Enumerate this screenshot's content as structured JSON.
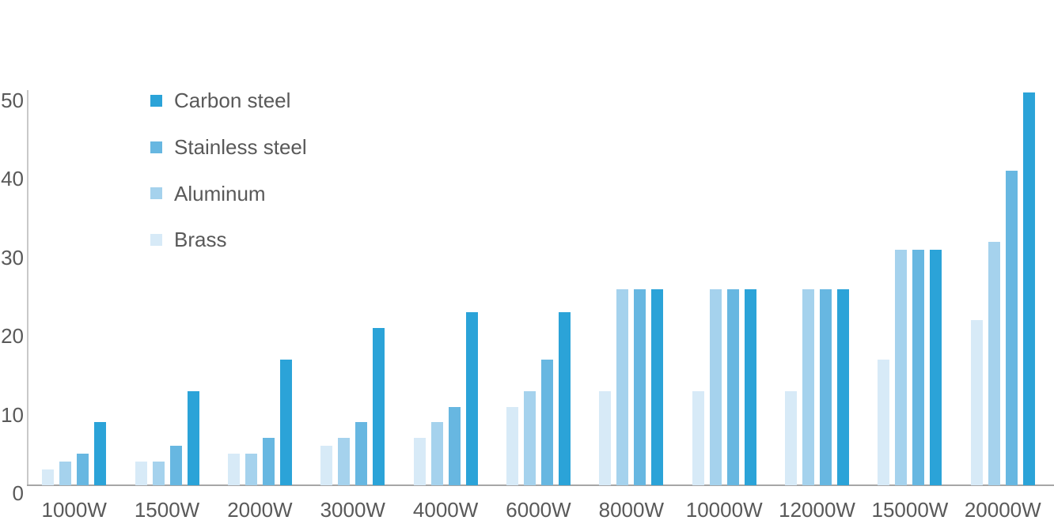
{
  "chart_data": {
    "type": "bar",
    "title": "",
    "xlabel": "",
    "ylabel": "",
    "categories": [
      "1000W",
      "1500W",
      "2000W",
      "3000W",
      "4000W",
      "6000W",
      "8000W",
      "10000W",
      "12000W",
      "15000W",
      "20000W"
    ],
    "series": [
      {
        "name": "Carbon steel",
        "color": "#2BA3D8",
        "values": [
          8,
          12,
          16,
          20,
          22,
          22,
          25,
          25,
          25,
          30,
          50
        ]
      },
      {
        "name": "Stainless steel",
        "color": "#67B7E1",
        "values": [
          4,
          5,
          6,
          8,
          10,
          16,
          25,
          25,
          25,
          30,
          40
        ]
      },
      {
        "name": "Aluminum",
        "color": "#A5D2ED",
        "values": [
          3,
          3,
          4,
          6,
          8,
          12,
          25,
          25,
          25,
          30,
          31
        ]
      },
      {
        "name": "Brass",
        "color": "#D7EAF7",
        "values": [
          2,
          3,
          4,
          5,
          6,
          10,
          12,
          12,
          12,
          16,
          21
        ]
      }
    ],
    "bar_draw_order_left_to_right": [
      "Brass",
      "Aluminum",
      "Stainless steel",
      "Carbon steel"
    ],
    "y_ticks": [
      0,
      10,
      20,
      30,
      40,
      50
    ],
    "ylim": [
      0,
      50
    ],
    "grid": false,
    "legend_position": "inside-top-left",
    "legend_order_top_to_bottom": [
      "Carbon steel",
      "Stainless steel",
      "Aluminum",
      "Brass"
    ],
    "axis_line_color": "#A6A6A6",
    "label_color": "#595959"
  }
}
